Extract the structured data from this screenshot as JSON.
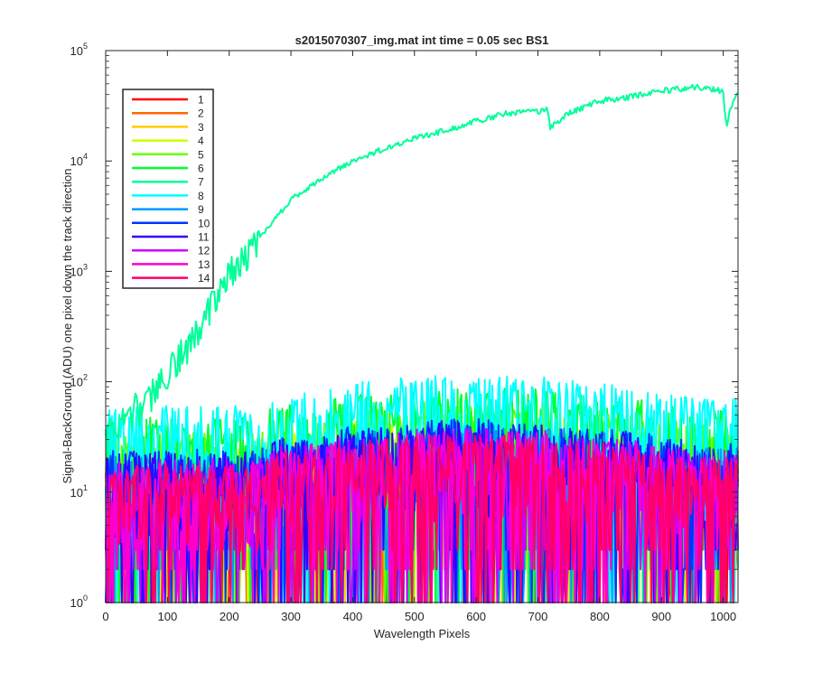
{
  "chart_data": {
    "type": "line",
    "title": "s2015070307_img.mat int time = 0.05 sec   BS1",
    "xlabel": "Wavelength Pixels",
    "ylabel": "Signal-BackGround (ADU) one pixel down the track direction",
    "xlim": [
      0,
      1024
    ],
    "ylim": [
      1,
      100000
    ],
    "yscale": "log",
    "xticks": [
      "0",
      "100",
      "200",
      "300",
      "400",
      "500",
      "600",
      "700",
      "800",
      "900",
      "1000"
    ],
    "yticks": [
      {
        "base": "10",
        "exp": "0"
      },
      {
        "base": "10",
        "exp": "1"
      },
      {
        "base": "10",
        "exp": "2"
      },
      {
        "base": "10",
        "exp": "3"
      },
      {
        "base": "10",
        "exp": "4"
      },
      {
        "base": "10",
        "exp": "5"
      }
    ],
    "grid": false,
    "legend_position": "top-left",
    "series": [
      {
        "name": "1",
        "color": "#ff0000",
        "profile": "noise",
        "level": 14
      },
      {
        "name": "2",
        "color": "#ff6600",
        "profile": "noise",
        "level": 15
      },
      {
        "name": "3",
        "color": "#ffcc00",
        "profile": "noise",
        "level": 16
      },
      {
        "name": "4",
        "color": "#ccff00",
        "profile": "noise",
        "level": 20
      },
      {
        "name": "5",
        "color": "#66ff00",
        "profile": "noise",
        "level": 26
      },
      {
        "name": "6",
        "color": "#00ff33",
        "profile": "noise",
        "level": 35
      },
      {
        "name": "7",
        "color": "#00ff99",
        "profile": "signal",
        "points": [
          [
            0,
            30
          ],
          [
            30,
            45
          ],
          [
            50,
            60
          ],
          [
            60,
            60
          ],
          [
            100,
            120
          ],
          [
            150,
            300
          ],
          [
            170,
            500
          ],
          [
            200,
            1000
          ],
          [
            250,
            2000
          ],
          [
            300,
            4500
          ],
          [
            350,
            7000
          ],
          [
            400,
            10000
          ],
          [
            450,
            13000
          ],
          [
            500,
            16000
          ],
          [
            550,
            19000
          ],
          [
            600,
            23000
          ],
          [
            650,
            27000
          ],
          [
            700,
            28000
          ],
          [
            715,
            30000
          ],
          [
            720,
            20000
          ],
          [
            730,
            22000
          ],
          [
            750,
            27000
          ],
          [
            800,
            35000
          ],
          [
            850,
            38000
          ],
          [
            880,
            42000
          ],
          [
            900,
            43000
          ],
          [
            930,
            45000
          ],
          [
            960,
            47000
          ],
          [
            990,
            44000
          ],
          [
            1000,
            42000
          ],
          [
            1005,
            20000
          ],
          [
            1012,
            30000
          ],
          [
            1024,
            42000
          ]
        ]
      },
      {
        "name": "8",
        "color": "#00ffff",
        "profile": "noise",
        "level": 45
      },
      {
        "name": "9",
        "color": "#0099ff",
        "profile": "noise",
        "level": 16
      },
      {
        "name": "10",
        "color": "#0033ff",
        "profile": "noise",
        "level": 18
      },
      {
        "name": "11",
        "color": "#3300ff",
        "profile": "noise",
        "level": 17
      },
      {
        "name": "12",
        "color": "#cc00ff",
        "profile": "noise",
        "level": 15
      },
      {
        "name": "13",
        "color": "#ff00cc",
        "profile": "noise",
        "level": 14
      },
      {
        "name": "14",
        "color": "#ff0066",
        "profile": "noise",
        "level": 13
      }
    ]
  }
}
